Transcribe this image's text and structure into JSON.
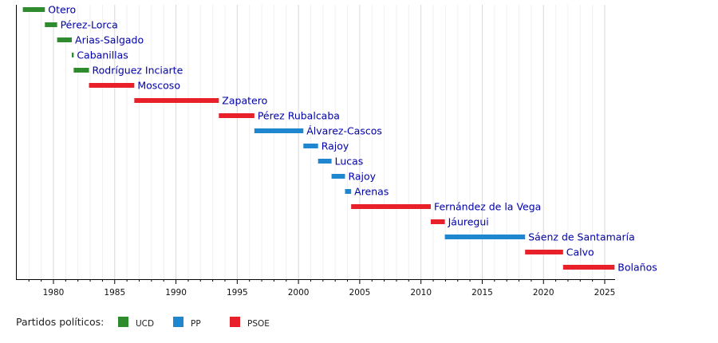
{
  "chart_data": {
    "type": "timeline",
    "title": "",
    "xlim": [
      1977,
      2025.8
    ],
    "ticks": [
      1980,
      1985,
      1990,
      1995,
      2000,
      2005,
      2010,
      2015,
      2020,
      2025
    ],
    "tick_labels": [
      "1980",
      "1985",
      "1990",
      "1995",
      "2000",
      "2005",
      "2010",
      "2015",
      "2020",
      "2025"
    ],
    "grid": "major every 5 years, minor every year",
    "colors": {
      "UCD": "#2e8b2e",
      "PP": "#1e87d0",
      "PSOE": "#e8202a",
      "label": "#0000a8"
    },
    "bars": [
      {
        "name": "Otero",
        "party": "UCD",
        "start": 1977.5,
        "end": 1979.3
      },
      {
        "name": "Pérez-Lorca",
        "party": "UCD",
        "start": 1979.3,
        "end": 1980.3
      },
      {
        "name": "Arias-Salgado",
        "party": "UCD",
        "start": 1980.3,
        "end": 1981.5
      },
      {
        "name": "Cabanillas",
        "party": "UCD",
        "start": 1981.5,
        "end": 1981.65
      },
      {
        "name": "Rodríguez Inciarte",
        "party": "UCD",
        "start": 1981.65,
        "end": 1982.9
      },
      {
        "name": "Moscoso",
        "party": "PSOE",
        "start": 1982.9,
        "end": 1986.6
      },
      {
        "name": "Zapatero",
        "party": "PSOE",
        "start": 1986.6,
        "end": 1993.5
      },
      {
        "name": "Pérez Rubalcaba",
        "party": "PSOE",
        "start": 1993.5,
        "end": 1996.4
      },
      {
        "name": "Álvarez-Cascos",
        "party": "PP",
        "start": 1996.4,
        "end": 2000.4
      },
      {
        "name": "Rajoy",
        "party": "PP",
        "start": 2000.4,
        "end": 2001.6
      },
      {
        "name": "Lucas",
        "party": "PP",
        "start": 2001.6,
        "end": 2002.7
      },
      {
        "name": "Rajoy",
        "party": "PP",
        "start": 2002.7,
        "end": 2003.8
      },
      {
        "name": "Arenas",
        "party": "PP",
        "start": 2003.8,
        "end": 2004.3
      },
      {
        "name": "Fernández de la Vega",
        "party": "PSOE",
        "start": 2004.3,
        "end": 2010.8
      },
      {
        "name": "Jáuregui",
        "party": "PSOE",
        "start": 2010.8,
        "end": 2011.95
      },
      {
        "name": "Sáenz de Santamaría",
        "party": "PP",
        "start": 2011.95,
        "end": 2018.5
      },
      {
        "name": "Calvo",
        "party": "PSOE",
        "start": 2018.5,
        "end": 2021.6
      },
      {
        "name": "Bolaños",
        "party": "PSOE",
        "start": 2021.6,
        "end": 2025.8
      }
    ],
    "legend": {
      "title": "Partidos políticos:",
      "entries": [
        "UCD",
        "PP",
        "PSOE"
      ],
      "placement": "bottom-left"
    }
  }
}
